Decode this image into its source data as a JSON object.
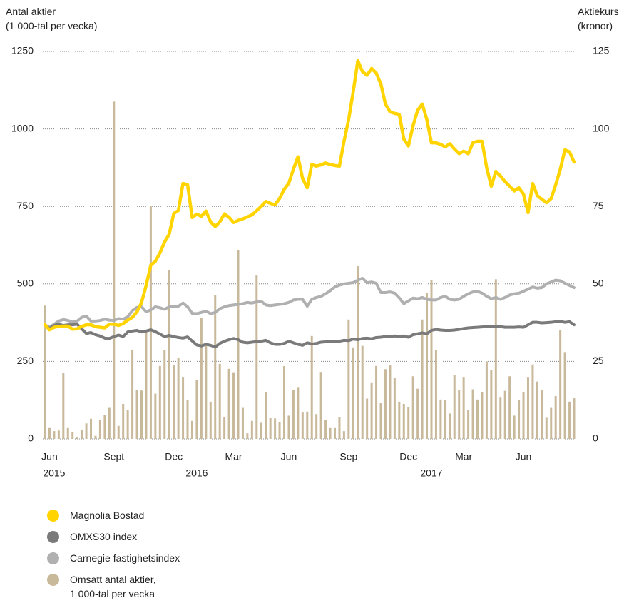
{
  "chart_data": {
    "type": "combo",
    "ylabel": "Antal aktier\n(1 000-tal per vecka)",
    "y2label": "Aktiekurs\n(kronor)",
    "ylim": [
      0,
      1250
    ],
    "yticks": [
      0,
      250,
      500,
      750,
      1000,
      1250
    ],
    "y2lim": [
      0,
      125
    ],
    "y2ticks": [
      0,
      25,
      50,
      75,
      100,
      125
    ],
    "grid": true,
    "categories": [
      null,
      "Jun",
      null,
      null,
      null,
      null,
      null,
      null,
      null,
      null,
      null,
      null,
      null,
      null,
      null,
      "Sept",
      null,
      null,
      null,
      null,
      null,
      null,
      null,
      null,
      null,
      null,
      null,
      null,
      "Dec",
      null,
      null,
      null,
      null,
      null,
      null,
      null,
      null,
      null,
      null,
      null,
      null,
      "Mar",
      null,
      null,
      null,
      null,
      null,
      null,
      null,
      null,
      null,
      null,
      null,
      "Jun",
      null,
      null,
      null,
      null,
      null,
      null,
      null,
      null,
      null,
      null,
      null,
      null,
      "Sep",
      null,
      null,
      null,
      null,
      null,
      null,
      null,
      null,
      null,
      null,
      null,
      null,
      "Dec",
      null,
      null,
      null,
      null,
      null,
      null,
      null,
      null,
      null,
      null,
      null,
      "Mar",
      null,
      null,
      null,
      null,
      null,
      null,
      null,
      null,
      null,
      null,
      null,
      null,
      "Jun",
      null,
      null,
      null,
      null,
      null,
      null,
      null,
      null,
      null,
      null,
      null
    ],
    "year_categories": [
      null,
      null,
      "2015",
      null,
      null,
      null,
      null,
      null,
      null,
      null,
      null,
      null,
      null,
      null,
      null,
      null,
      null,
      null,
      null,
      null,
      null,
      null,
      null,
      null,
      null,
      null,
      null,
      null,
      null,
      null,
      null,
      null,
      null,
      "2016",
      null,
      null,
      null,
      null,
      null,
      null,
      null,
      null,
      null,
      null,
      null,
      null,
      null,
      null,
      null,
      null,
      null,
      null,
      null,
      null,
      null,
      null,
      null,
      null,
      null,
      null,
      null,
      null,
      null,
      null,
      null,
      null,
      null,
      null,
      null,
      null,
      null,
      null,
      null,
      null,
      null,
      null,
      null,
      null,
      null,
      null,
      null,
      null,
      null,
      null,
      "2017",
      null,
      null,
      null,
      null,
      null,
      null,
      null,
      null,
      null,
      null,
      null,
      null,
      null,
      null,
      null,
      null,
      null,
      null,
      null,
      null,
      null,
      null,
      null,
      null,
      null,
      null,
      null,
      null,
      null,
      null
    ],
    "series": [
      {
        "name": "Magnolia Bostad",
        "type": "line",
        "axis": "y2",
        "color": "#ffd400",
        "values": [
          36.8,
          35.2,
          36,
          36.3,
          36.4,
          36.4,
          35.4,
          35.5,
          36.3,
          36.8,
          36.8,
          36.2,
          36,
          35.8,
          37,
          37,
          36.6,
          37.2,
          38.3,
          39.2,
          41,
          44,
          49.5,
          56,
          57.3,
          60,
          63.5,
          66,
          72.7,
          73.7,
          82.4,
          82,
          71.4,
          72.5,
          71.8,
          73.5,
          70,
          68.5,
          70,
          72.6,
          71.5,
          69.8,
          70.5,
          71,
          71.6,
          72.3,
          73.6,
          75,
          76.6,
          76,
          75.5,
          77.6,
          80.5,
          82.5,
          87,
          91,
          84,
          81,
          88.6,
          88,
          88.4,
          89,
          88.5,
          88.2,
          88,
          96,
          103,
          112,
          122,
          118.5,
          117.3,
          119.5,
          118,
          114.5,
          108,
          105.5,
          105,
          104.7,
          96.7,
          94.5,
          101,
          106,
          108,
          103,
          95.5,
          95.5,
          95,
          94.2,
          95.2,
          93.5,
          92,
          92.8,
          92,
          95.5,
          96,
          96,
          87.5,
          81.5,
          86.3,
          84.8,
          83,
          81.5,
          80,
          81,
          79,
          73,
          82.4,
          78.5,
          77.3,
          76.2,
          77.5,
          82,
          87,
          93.2,
          92.6,
          89.3
        ]
      },
      {
        "name": "OMXS30 index",
        "type": "line",
        "axis": "y2",
        "color": "#7a7a7a",
        "values": [
          36.8,
          35.6,
          36.6,
          37,
          36.6,
          36.8,
          36.8,
          37,
          35.5,
          34,
          34.3,
          33.6,
          33.2,
          32.5,
          32.4,
          33,
          33.5,
          33,
          34.5,
          34.8,
          35,
          34.5,
          34.8,
          35.2,
          34.6,
          33.8,
          33,
          33.4,
          33,
          32.7,
          32.5,
          32.9,
          31.6,
          30.3,
          30,
          30.5,
          30.2,
          29.6,
          30.8,
          31.5,
          32,
          32.4,
          32,
          31.2,
          31,
          31.2,
          31.4,
          31.5,
          31.8,
          31,
          30.5,
          30.5,
          30.8,
          31.5,
          31,
          30.5,
          30.2,
          31,
          30.6,
          30.8,
          31.2,
          31.3,
          31.5,
          31.4,
          31.5,
          31.8,
          31.7,
          32.2,
          32,
          32.4,
          32.5,
          32.3,
          32.7,
          32.8,
          33,
          33,
          33.2,
          33,
          33.2,
          32.8,
          33.6,
          33.9,
          34.2,
          33.9,
          35,
          35.3,
          35.1,
          35,
          35,
          35.1,
          35.3,
          35.6,
          35.8,
          35.9,
          36,
          36.1,
          36.2,
          36.2,
          36.1,
          36.2,
          36,
          36,
          36,
          36.1,
          36,
          36.8,
          37.6,
          37.6,
          37.4,
          37.5,
          37.6,
          37.8,
          37.9,
          37.6,
          37.8,
          36.8
        ]
      },
      {
        "name": "Carnegie fastighetsindex",
        "type": "line",
        "axis": "y2",
        "color": "#b0b0b0",
        "values": [
          36.8,
          36,
          37,
          38,
          38.5,
          38.2,
          37.7,
          38,
          39.2,
          39.6,
          38,
          38,
          38.2,
          38.6,
          38.3,
          38.2,
          38.8,
          38.6,
          39.4,
          41.4,
          42.4,
          42.6,
          41,
          41.6,
          42.6,
          42.3,
          41.8,
          42.6,
          42.6,
          42.8,
          43.8,
          42.6,
          40.5,
          40.4,
          40.8,
          41.2,
          40.4,
          40.8,
          42,
          42.6,
          43,
          43.2,
          43.4,
          43.6,
          44,
          43.8,
          44.2,
          44.4,
          43.2,
          43,
          43.2,
          43.4,
          43.6,
          44,
          44.8,
          45,
          45,
          42.8,
          45,
          45.6,
          46,
          46.8,
          47.8,
          49,
          49.6,
          50,
          50.2,
          50.4,
          51.2,
          51.8,
          50.4,
          50.6,
          50.2,
          47.2,
          47.2,
          47.4,
          47,
          45.5,
          43.6,
          44.5,
          45.4,
          45.2,
          45.6,
          45,
          44.8,
          44.8,
          45.6,
          46,
          45,
          44.8,
          45,
          46,
          46.8,
          47.4,
          47.6,
          47,
          46,
          45.2,
          45.6,
          45,
          45.6,
          46.4,
          46.8,
          47,
          47.6,
          48.3,
          49,
          48.6,
          48.8,
          50,
          50.6,
          51.2,
          51,
          50.2,
          49.5,
          48.8
        ]
      },
      {
        "name": "Omsatt antal aktier,\n1 000-tal per vecka",
        "type": "bar",
        "axis": "y",
        "color": "#c9b99b",
        "values": [
          430,
          35,
          25,
          27,
          212,
          35,
          23,
          7,
          28,
          50,
          65,
          10,
          62,
          76,
          100,
          1088,
          42,
          113,
          92,
          288,
          157,
          156,
          348,
          750,
          146,
          235,
          287,
          545,
          237,
          260,
          200,
          125,
          58,
          190,
          390,
          300,
          120,
          465,
          242,
          70,
          226,
          215,
          610,
          100,
          18,
          58,
          527,
          52,
          152,
          67,
          66,
          55,
          235,
          75,
          158,
          165,
          85,
          88,
          332,
          80,
          216,
          60,
          35,
          35,
          70,
          25,
          385,
          295,
          557,
          300,
          130,
          180,
          235,
          115,
          225,
          237,
          197,
          120,
          113,
          102,
          202,
          162,
          385,
          470,
          512,
          286,
          127,
          126,
          82,
          205,
          158,
          200,
          92,
          160,
          127,
          150,
          250,
          222,
          515,
          133,
          155,
          202,
          75,
          126,
          150,
          200,
          240,
          185,
          157,
          68,
          100,
          138,
          350,
          280,
          120,
          131
        ]
      }
    ]
  }
}
